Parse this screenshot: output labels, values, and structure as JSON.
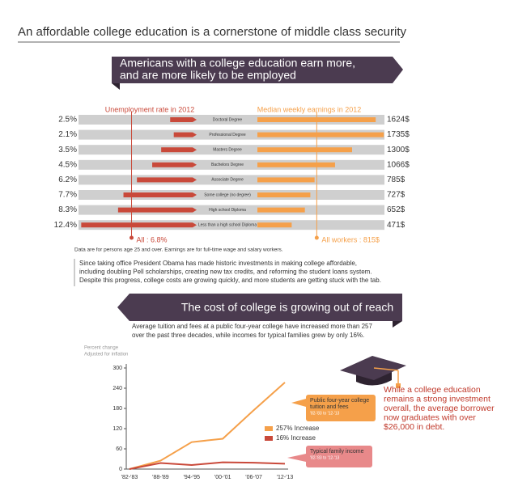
{
  "header": {
    "title": "An affordable college education is a cornerstone of middle class security"
  },
  "banners": [
    {
      "lines": [
        "Americans with a college education earn more,",
        "and are more likely to be employed"
      ]
    },
    {
      "lines": [
        "The cost of college is growing out of reach"
      ]
    }
  ],
  "chart_data": [
    {
      "type": "butterfly",
      "categories": [
        "Doctoral Degree",
        "Professional Degree",
        "Masters Degree",
        "Bachelors Degree",
        "Associate Degree",
        "Some college (no degree)",
        "High school Diploma",
        "Less than a high school Diploma"
      ],
      "series": [
        {
          "name": "Unemployment rate in 2012",
          "color": "#c9493a",
          "values": [
            2.5,
            2.1,
            3.5,
            4.5,
            6.2,
            7.7,
            8.3,
            12.4
          ],
          "value_labels": [
            "2.5%",
            "2.1%",
            "3.5%",
            "4.5%",
            "6.2%",
            "7.7%",
            "8.3%",
            "12.4%"
          ],
          "reference": {
            "value": 6.8,
            "label": "All : 6.8%"
          }
        },
        {
          "name": "Median weekly earnings in 2012",
          "color": "#f5a04a",
          "values": [
            1624,
            1735,
            1300,
            1066,
            785,
            727,
            652,
            471
          ],
          "value_labels": [
            "1624$",
            "1735$",
            "1300$",
            "1066$",
            "785$",
            "727$",
            "652$",
            "471$"
          ],
          "reference": {
            "value": 815,
            "label": "All workers : 815$"
          }
        }
      ],
      "note": "Data are for persons age 25 and over. Earnings are for full-time wage and salary workers."
    },
    {
      "type": "line",
      "y_label": [
        "Percent change",
        "Adjusted for inflation"
      ],
      "categories": [
        "'82-'83",
        "'88-'89",
        "'94-'95",
        "'00-'01",
        "'06-'07",
        "'12-'13"
      ],
      "ylim": [
        0,
        300
      ],
      "yticks": [
        0,
        60,
        120,
        180,
        240,
        300
      ],
      "series": [
        {
          "name": "257% Increase",
          "color": "#f5a04a",
          "values": [
            0,
            25,
            80,
            90,
            175,
            257
          ]
        },
        {
          "name": "16% Increase",
          "color": "#c9493a",
          "values": [
            0,
            18,
            12,
            20,
            19,
            16
          ]
        }
      ],
      "callouts": [
        {
          "lines": [
            "Public four-year college",
            "tuition and fees"
          ],
          "subtitle": "'82-'83 to '12-'13",
          "color": "#f5a04a"
        },
        {
          "lines": [
            "Typical family income"
          ],
          "subtitle": "'82-'83 to '12-'13",
          "color": "#e8898a"
        }
      ]
    }
  ],
  "paragraph": [
    "Since taking office President Obama has made historic investments in making college affordable,",
    "including doubling Pell scholarships, creating new tax credits, and reforming the student loans system.",
    "Despite this progress, college costs are growing quickly, and more students are getting stuck with the tab."
  ],
  "cost_text": [
    "Average tuition and fees at a public four-year college have increased more than 257",
    "over the past three decades, while incomes for typical families grew by only 16%."
  ],
  "debt_text": [
    "While a college education",
    "remains a strong investment",
    "overall, the average borrower",
    "now graduates with over",
    "$26,000 in debt."
  ]
}
